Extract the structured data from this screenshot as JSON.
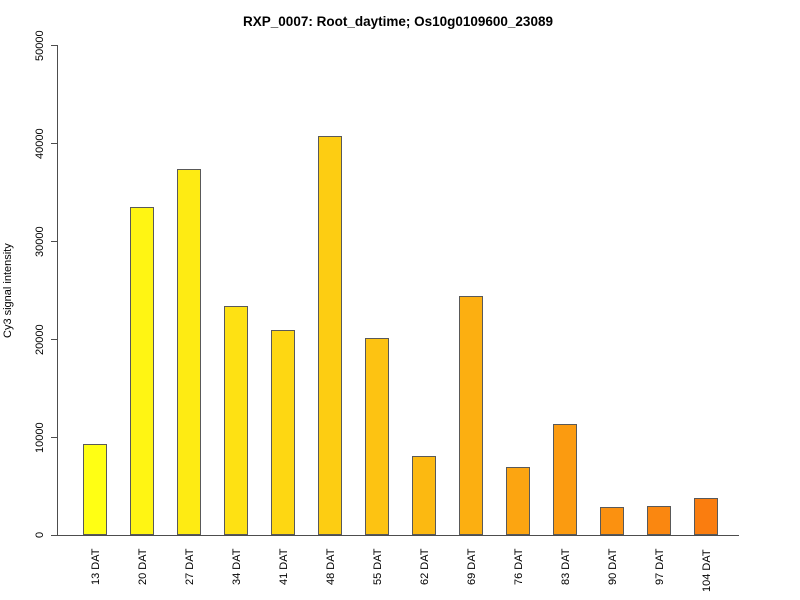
{
  "chart_data": {
    "type": "bar",
    "title": "RXP_0007: Root_daytime; Os10g0109600_23089",
    "xlabel": "",
    "ylabel": "Cy3 signal intensity",
    "categories": [
      "13 DAT",
      "20 DAT",
      "27 DAT",
      "34 DAT",
      "41 DAT",
      "48 DAT",
      "55 DAT",
      "62 DAT",
      "69 DAT",
      "76 DAT",
      "83 DAT",
      "90 DAT",
      "97 DAT",
      "104 DAT"
    ],
    "values": [
      9300,
      33500,
      37300,
      23400,
      20900,
      40700,
      20100,
      8100,
      24400,
      6900,
      11350,
      2900,
      3000,
      3800
    ],
    "bar_colors": [
      "#FFFF14",
      "#FFF513",
      "#FEEB13",
      "#FEE113",
      "#FED712",
      "#FDCD12",
      "#FDC312",
      "#FCB911",
      "#FCAF11",
      "#FCA511",
      "#FB9B10",
      "#FB9110",
      "#FA8710",
      "#FA7D0F"
    ],
    "bar_border_color": "#595959",
    "axis_color": "#4d4d4d",
    "text_color": "#000000",
    "background_color": "#ffffff",
    "ylim": [
      0,
      50000
    ],
    "yticks": [
      0,
      10000,
      20000,
      30000,
      40000,
      50000
    ],
    "ytick_labels": [
      "0",
      "10000",
      "20000",
      "30000",
      "40000",
      "50000"
    ],
    "grid": false,
    "legend": null
  }
}
